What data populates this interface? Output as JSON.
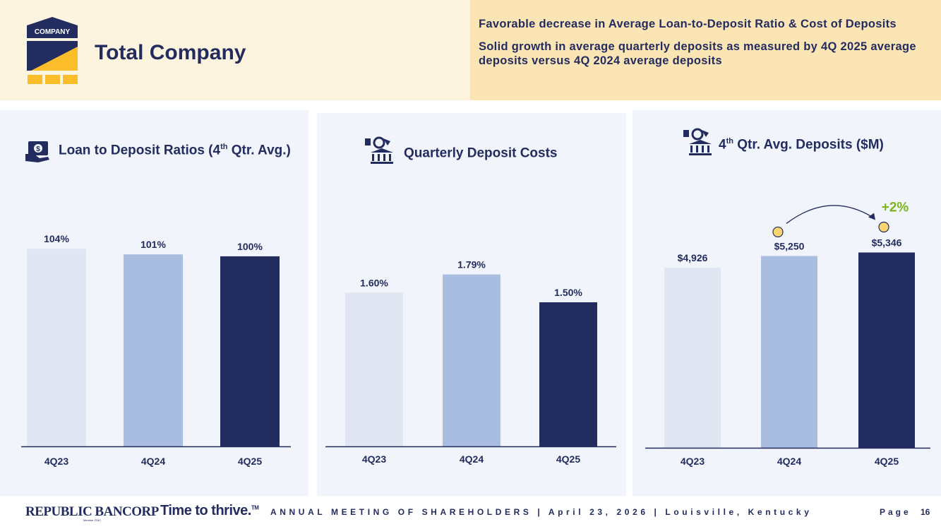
{
  "header": {
    "logo_text": "COMPANY",
    "title": "Total Company",
    "bullets": [
      "Favorable decrease in Average Loan-to-Deposit Ratio & Cost of Deposits",
      "Solid growth in average quarterly deposits as measured by 4Q 2025 average deposits versus 4Q 2024 average deposits"
    ]
  },
  "panels": [
    {
      "title_pre": "Loan to Deposit Ratios (4",
      "title_sup": "th",
      "title_post": " Qtr. Avg.)",
      "icon": "money-hand-icon"
    },
    {
      "title_pre": "Quarterly Deposit Costs",
      "title_sup": "",
      "title_post": "",
      "icon": "bank-deposit-icon"
    },
    {
      "title_pre": "4",
      "title_sup": "th",
      "title_post": " Qtr. Avg. Deposits ($M)",
      "icon": "bank-deposit-icon"
    }
  ],
  "chart_data": [
    {
      "type": "bar",
      "categories": [
        "4Q23",
        "4Q24",
        "4Q25"
      ],
      "values": [
        104,
        101,
        100
      ],
      "labels": [
        "104%",
        "101%",
        "100%"
      ],
      "ylim": [
        0,
        110
      ],
      "colors": [
        "#e0e7f3",
        "#a8bde0",
        "#232c5f"
      ]
    },
    {
      "type": "bar",
      "categories": [
        "4Q23",
        "4Q24",
        "4Q25"
      ],
      "values": [
        1.6,
        1.79,
        1.5
      ],
      "labels": [
        "1.60%",
        "1.79%",
        "1.50%"
      ],
      "ylim": [
        0,
        2.0
      ],
      "colors": [
        "#e0e7f3",
        "#a8bde0",
        "#232c5f"
      ]
    },
    {
      "type": "bar",
      "categories": [
        "4Q23",
        "4Q24",
        "4Q25"
      ],
      "values": [
        4926,
        5250,
        5346
      ],
      "labels": [
        "$4,926",
        "$5,250",
        "$5,346"
      ],
      "ylim": [
        0,
        5800
      ],
      "colors": [
        "#e0e7f3",
        "#a8bde0",
        "#232c5f"
      ],
      "annotation": {
        "text": "+2%",
        "from": "4Q24",
        "to": "4Q25",
        "color": "#7ab51d"
      }
    }
  ],
  "footer": {
    "brand": "REPUBLIC BANCORP",
    "brand_sub": "Member FDIC",
    "tagline": "Time to thrive.",
    "tagline_mark": "TM",
    "meeting": "ANNUAL MEETING OF SHAREHOLDERS  |  April 23, 2026  |  Louisville, Kentucky",
    "page_label": "Page",
    "page_number": "16"
  }
}
